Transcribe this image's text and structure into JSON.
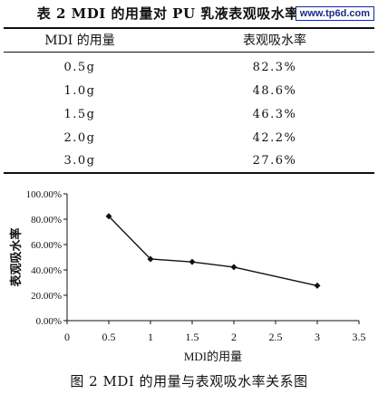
{
  "table": {
    "title": "表 2 MDI 的用量对 PU 乳液表观吸水率的关系",
    "watermark": "www.tp6d.com",
    "headers": [
      "MDI 的用量",
      "表观吸水率"
    ],
    "rows": [
      [
        "0.5g",
        "82.3%"
      ],
      [
        "1.0g",
        "48.6%"
      ],
      [
        "1.5g",
        "46.3%"
      ],
      [
        "2.0g",
        "42.2%"
      ],
      [
        "3.0g",
        "27.6%"
      ]
    ]
  },
  "chart_data": {
    "type": "line",
    "title": "",
    "xlabel": "MDI的用量",
    "ylabel": "表观吸水率",
    "xlim": [
      0,
      3.5
    ],
    "ylim": [
      0,
      100
    ],
    "x_ticks": [
      "0",
      "0.5",
      "1",
      "1.5",
      "2",
      "2.5",
      "3",
      "3.5"
    ],
    "y_ticks": [
      "0.00%",
      "20.00%",
      "40.00%",
      "60.00%",
      "80.00%",
      "100.00%"
    ],
    "grid": false,
    "series": [
      {
        "x": [
          0.5,
          1.0,
          1.5,
          2.0,
          3.0
        ],
        "values": [
          82.3,
          48.6,
          46.3,
          42.2,
          27.6
        ]
      }
    ],
    "line_color": "#111111"
  },
  "figure": {
    "caption": "图 2 MDI 的用量与表观吸水率关系图"
  }
}
